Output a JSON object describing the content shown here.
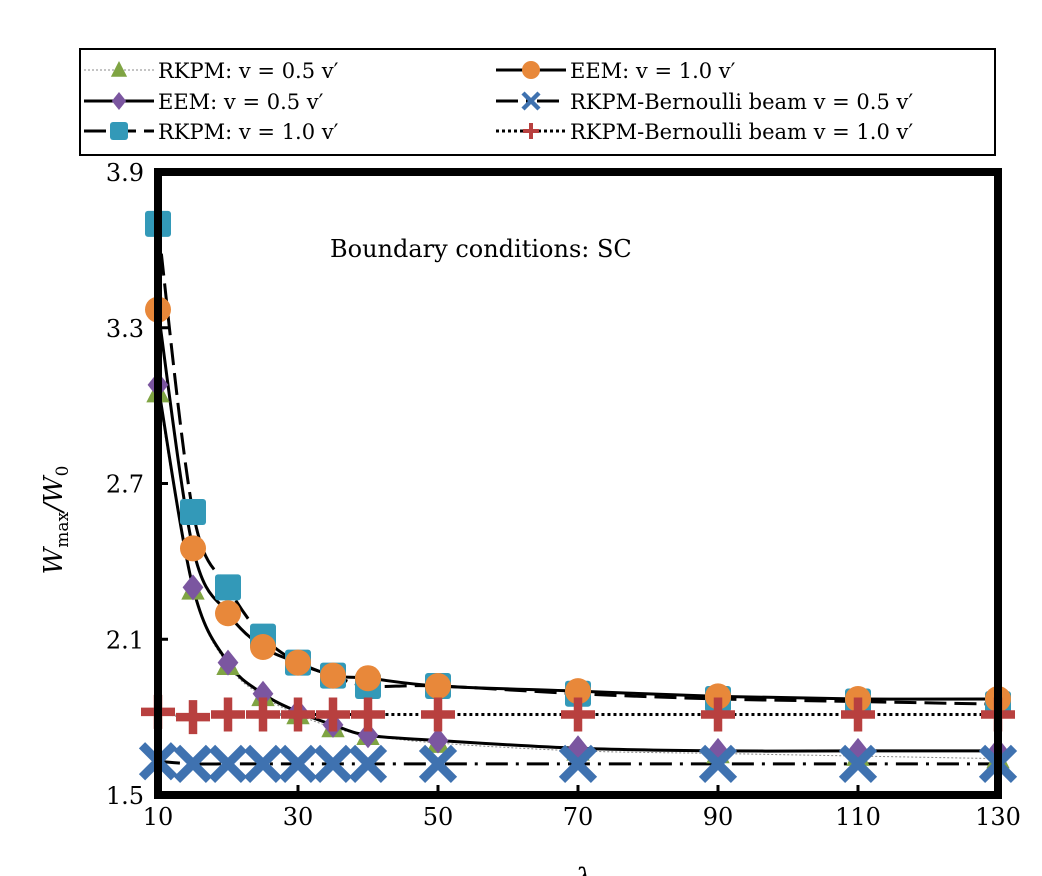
{
  "chart_data": {
    "type": "line",
    "title": "",
    "annotation": "Boundary conditions: SC",
    "xlabel": "λ",
    "ylabel": "W_max/W_0",
    "ylabel_main": "W",
    "ylabel_sub": "max",
    "ylabel_den": "/W",
    "ylabel_den_sub": "0",
    "xlim": [
      10,
      130
    ],
    "ylim": [
      1.5,
      3.9
    ],
    "xticks": [
      10,
      30,
      50,
      70,
      90,
      110,
      130
    ],
    "yticks": [
      1.5,
      2.1,
      2.7,
      3.3,
      3.9
    ],
    "xtick_labels": [
      "10",
      "30",
      "50",
      "70",
      "90",
      "110",
      "130"
    ],
    "ytick_labels": [
      "1.5",
      "2.1",
      "2.7",
      "3.3",
      "3.9"
    ],
    "grid": false,
    "legend_placement": "top-outside",
    "x": [
      10,
      15,
      20,
      25,
      30,
      35,
      40,
      50,
      70,
      90,
      110,
      130
    ],
    "series": [
      {
        "name": "RKPM: v = 0.5 v′",
        "marker": "triangle",
        "color": "#7fa443",
        "line": "thin-dotted",
        "values": [
          3.05,
          2.29,
          2.0,
          1.88,
          1.81,
          1.76,
          1.73,
          1.7,
          1.67,
          1.66,
          1.65,
          1.64
        ]
      },
      {
        "name": "EEM: v = 0.5 v′",
        "marker": "diamond",
        "color": "#7b56a0",
        "line": "solid",
        "values": [
          3.08,
          2.3,
          2.01,
          1.89,
          1.82,
          1.77,
          1.73,
          1.71,
          1.68,
          1.67,
          1.67,
          1.67
        ]
      },
      {
        "name": "RKPM: v = 1.0 v′",
        "marker": "square",
        "color": "#3399b8",
        "line": "dashed",
        "values": [
          3.7,
          2.59,
          2.3,
          2.11,
          2.01,
          1.96,
          1.92,
          1.92,
          1.89,
          1.87,
          1.86,
          1.85
        ]
      },
      {
        "name": "EEM: v = 1.0 v′",
        "marker": "circle",
        "color": "#e8883a",
        "line": "solid",
        "values": [
          3.37,
          2.45,
          2.2,
          2.07,
          2.01,
          1.96,
          1.95,
          1.92,
          1.9,
          1.88,
          1.87,
          1.87
        ]
      },
      {
        "name": "RKPM-Bernoulli beam v = 0.5 v′",
        "marker": "x",
        "color": "#3f72b0",
        "line": "dash-dot",
        "values": [
          1.63,
          1.62,
          1.62,
          1.62,
          1.62,
          1.62,
          1.62,
          1.62,
          1.62,
          1.62,
          1.62,
          1.62
        ]
      },
      {
        "name": "RKPM-Bernoulli beam v = 1.0 v′",
        "marker": "plus",
        "color": "#b8403f",
        "line": "dotted",
        "values": [
          1.82,
          1.8,
          1.81,
          1.81,
          1.81,
          1.81,
          1.81,
          1.81,
          1.81,
          1.81,
          1.81,
          1.81
        ]
      }
    ]
  }
}
